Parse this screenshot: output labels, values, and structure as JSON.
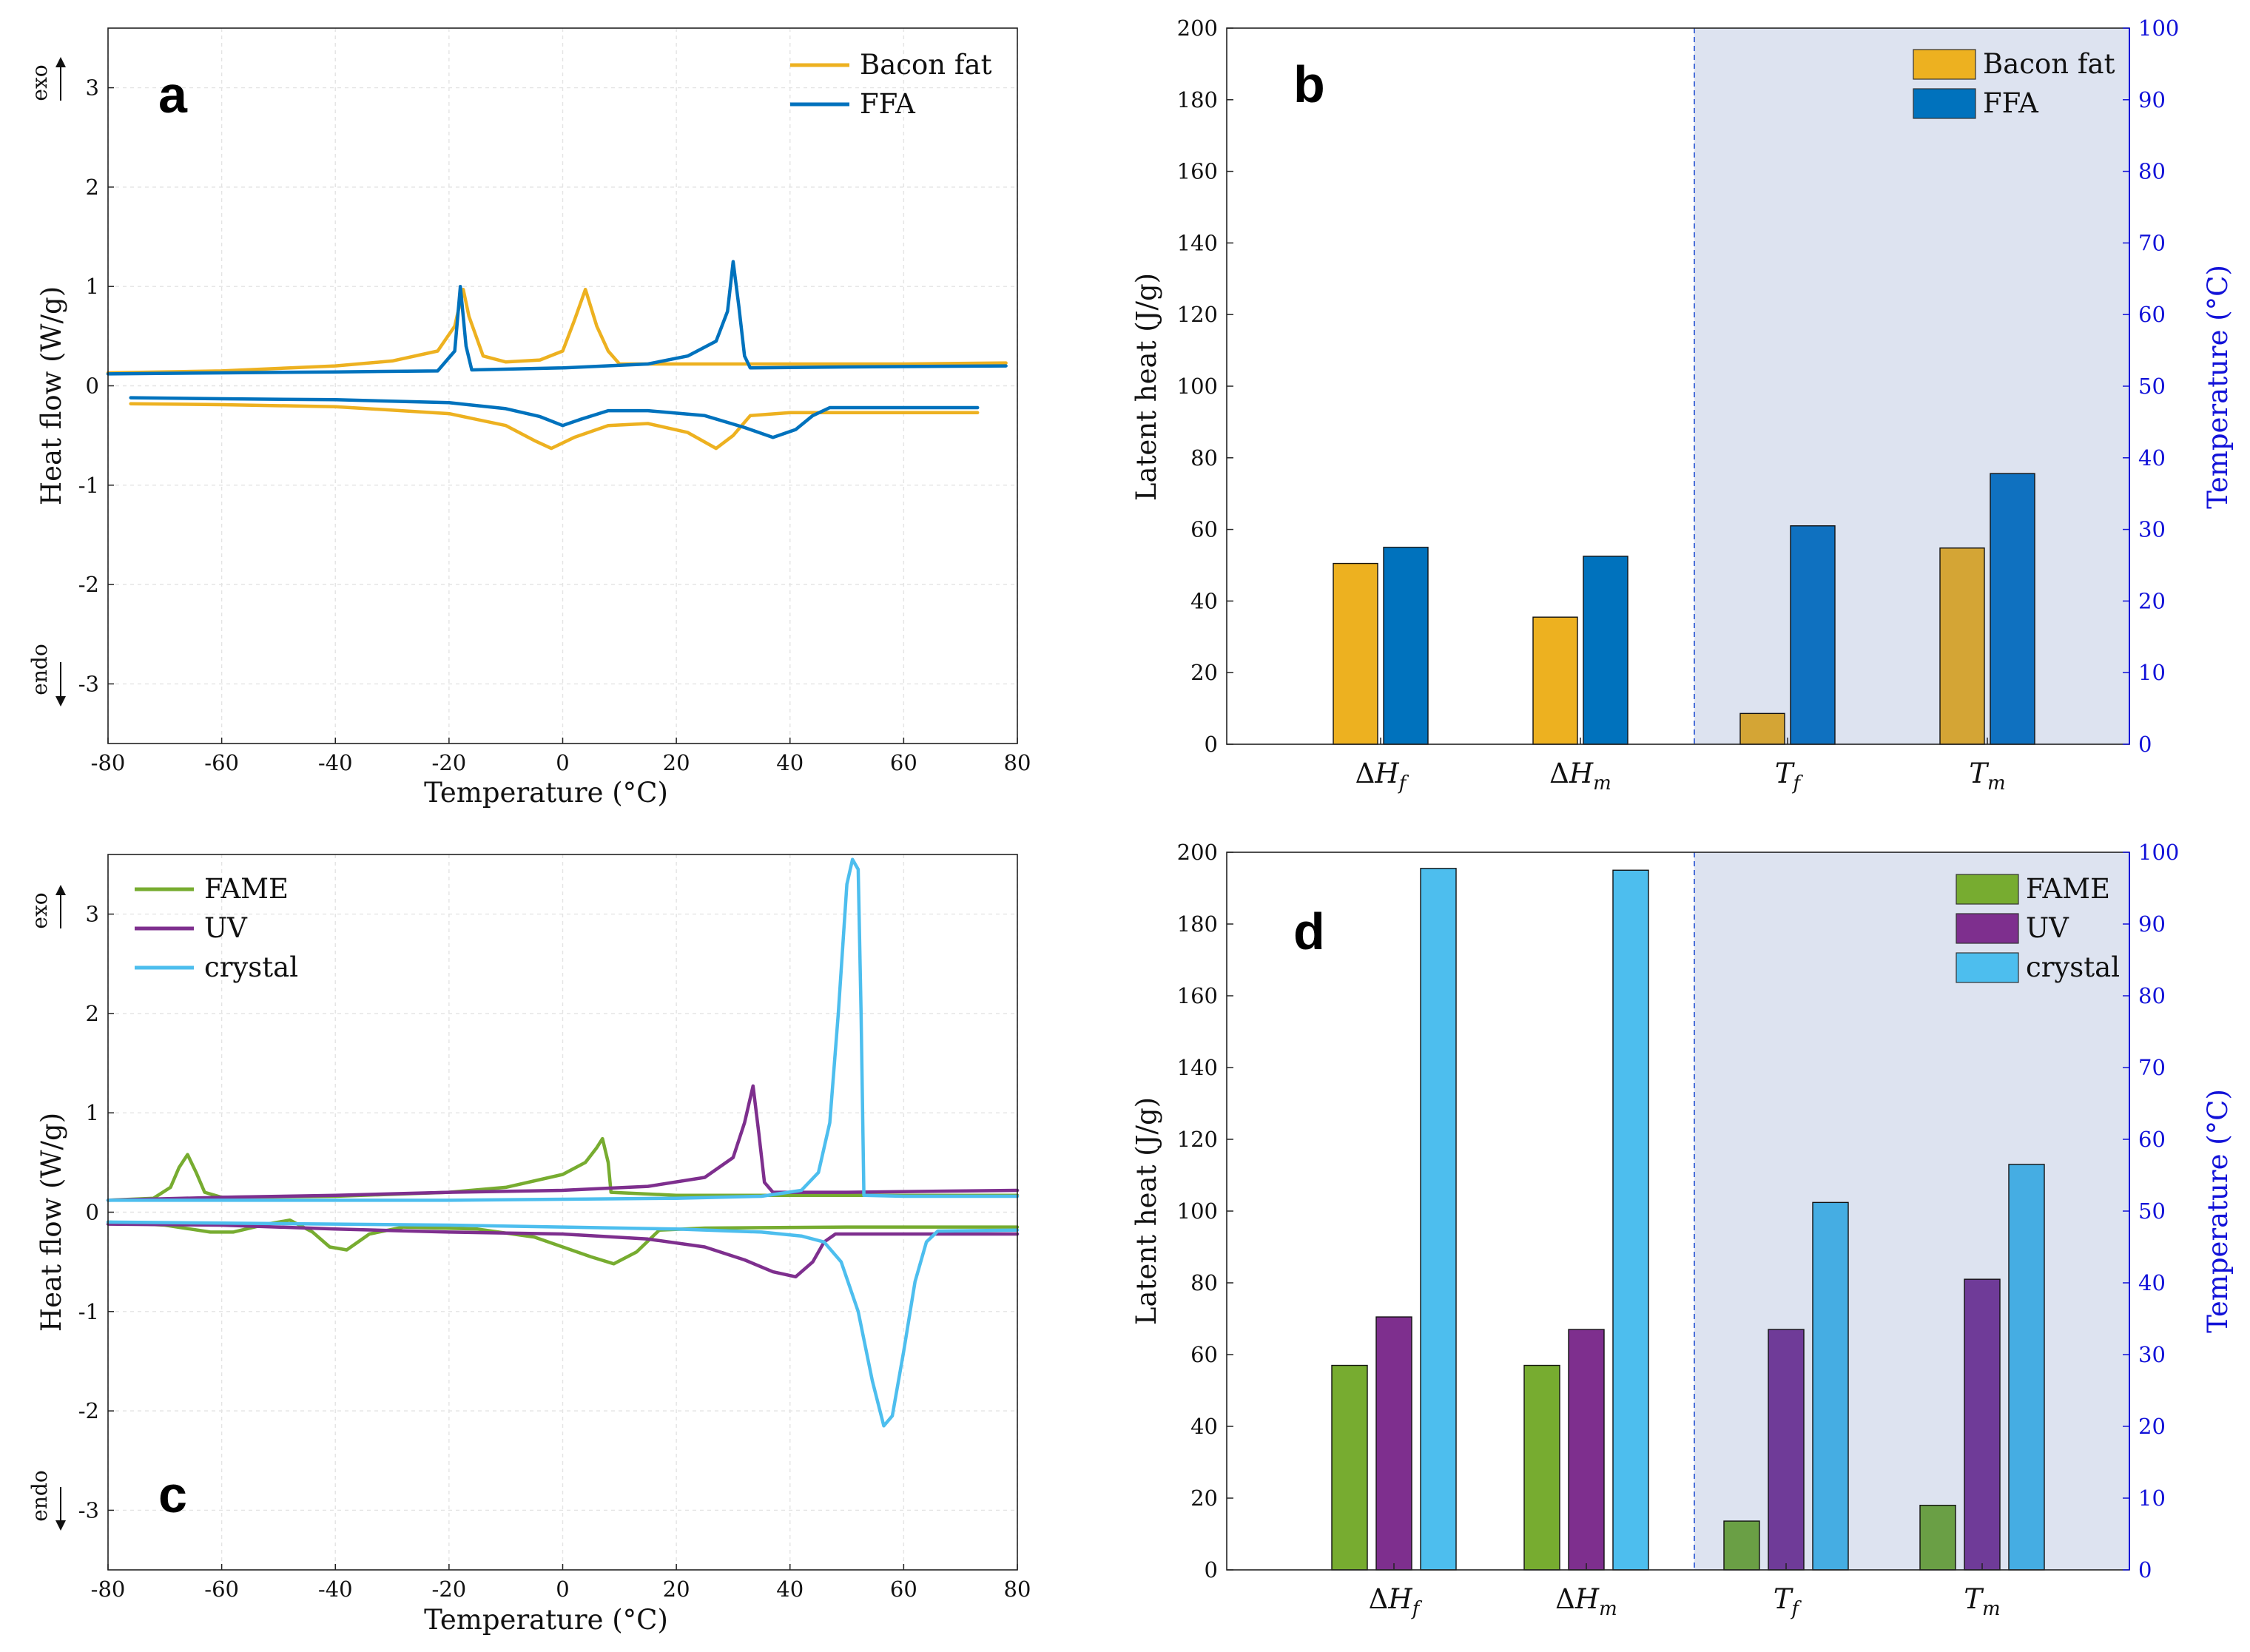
{
  "chart_data": [
    {
      "panel": "a",
      "type": "line",
      "xlabel": "Temperature (°C)",
      "ylabel": "Heat flow (W/g)",
      "xlim": [
        -80,
        80
      ],
      "ylim": [
        -3.6,
        3.6
      ],
      "xticks": [
        -80,
        -60,
        -40,
        -20,
        0,
        20,
        40,
        60,
        80
      ],
      "yticks": [
        -3,
        -2,
        -1,
        0,
        1,
        2,
        3
      ],
      "exo_label": "exo",
      "endo_label": "endo",
      "legend": [
        "Bacon fat",
        "FFA"
      ],
      "series": [
        {
          "name": "Bacon fat",
          "color": "#EDB120",
          "branch": "cooling",
          "points": [
            [
              -80,
              0.13
            ],
            [
              -60,
              0.15
            ],
            [
              -40,
              0.2
            ],
            [
              -30,
              0.25
            ],
            [
              -22,
              0.35
            ],
            [
              -19,
              0.6
            ],
            [
              -17.5,
              0.97
            ],
            [
              -16.5,
              0.7
            ],
            [
              -14,
              0.3
            ],
            [
              -10,
              0.24
            ],
            [
              -4,
              0.26
            ],
            [
              0,
              0.35
            ],
            [
              2,
              0.65
            ],
            [
              4,
              0.97
            ],
            [
              6,
              0.6
            ],
            [
              8,
              0.35
            ],
            [
              10,
              0.22
            ],
            [
              20,
              0.22
            ],
            [
              40,
              0.22
            ],
            [
              60,
              0.22
            ],
            [
              78,
              0.23
            ]
          ]
        },
        {
          "name": "Bacon fat",
          "color": "#EDB120",
          "branch": "heating",
          "points": [
            [
              -76,
              -0.18
            ],
            [
              -60,
              -0.19
            ],
            [
              -40,
              -0.21
            ],
            [
              -20,
              -0.28
            ],
            [
              -10,
              -0.4
            ],
            [
              -5,
              -0.55
            ],
            [
              -2,
              -0.63
            ],
            [
              2,
              -0.52
            ],
            [
              8,
              -0.4
            ],
            [
              15,
              -0.38
            ],
            [
              22,
              -0.47
            ],
            [
              27,
              -0.63
            ],
            [
              30,
              -0.5
            ],
            [
              33,
              -0.3
            ],
            [
              40,
              -0.27
            ],
            [
              60,
              -0.27
            ],
            [
              73,
              -0.27
            ]
          ]
        },
        {
          "name": "FFA",
          "color": "#0072BD",
          "branch": "cooling",
          "points": [
            [
              -80,
              0.12
            ],
            [
              -60,
              0.13
            ],
            [
              -40,
              0.14
            ],
            [
              -22,
              0.15
            ],
            [
              -19,
              0.35
            ],
            [
              -18,
              1.0
            ],
            [
              -17,
              0.4
            ],
            [
              -16,
              0.16
            ],
            [
              0,
              0.18
            ],
            [
              15,
              0.22
            ],
            [
              22,
              0.3
            ],
            [
              27,
              0.45
            ],
            [
              29,
              0.75
            ],
            [
              30,
              1.25
            ],
            [
              31,
              0.8
            ],
            [
              32,
              0.3
            ],
            [
              33,
              0.18
            ],
            [
              50,
              0.19
            ],
            [
              78,
              0.2
            ]
          ]
        },
        {
          "name": "FFA",
          "color": "#0072BD",
          "branch": "heating",
          "points": [
            [
              -76,
              -0.12
            ],
            [
              -60,
              -0.13
            ],
            [
              -40,
              -0.14
            ],
            [
              -20,
              -0.17
            ],
            [
              -10,
              -0.23
            ],
            [
              -4,
              -0.31
            ],
            [
              0,
              -0.4
            ],
            [
              3,
              -0.34
            ],
            [
              8,
              -0.25
            ],
            [
              15,
              -0.25
            ],
            [
              25,
              -0.3
            ],
            [
              32,
              -0.42
            ],
            [
              37,
              -0.52
            ],
            [
              41,
              -0.44
            ],
            [
              44,
              -0.3
            ],
            [
              47,
              -0.22
            ],
            [
              60,
              -0.22
            ],
            [
              73,
              -0.22
            ]
          ]
        }
      ]
    },
    {
      "panel": "b",
      "type": "bar",
      "categories": [
        "ΔH_f",
        "ΔH_m",
        "T_f",
        "T_m"
      ],
      "ylabel": "Latent heat (J/g)",
      "y2label": "Temperature (°C)",
      "ylim": [
        0,
        200
      ],
      "y2lim": [
        0,
        100
      ],
      "yticks": [
        0,
        20,
        40,
        60,
        80,
        100,
        120,
        140,
        160,
        180,
        200
      ],
      "y2ticks": [
        0,
        10,
        20,
        30,
        40,
        50,
        60,
        70,
        80,
        90,
        100
      ],
      "legend": [
        "Bacon fat",
        "FFA"
      ],
      "series": [
        {
          "name": "Bacon fat",
          "colors": [
            "#EDB120",
            "#EDB120",
            "#D4A535",
            "#D4A535"
          ],
          "values": [
            50.5,
            35.5,
            4.3,
            27.4
          ],
          "axis": [
            "left",
            "left",
            "right",
            "right"
          ]
        },
        {
          "name": "FFA",
          "colors": [
            "#0072BD",
            "#0072BD",
            "#0F71C0",
            "#0F71C0"
          ],
          "values": [
            55,
            52.5,
            30.5,
            37.8
          ],
          "axis": [
            "left",
            "left",
            "right",
            "right"
          ]
        }
      ]
    },
    {
      "panel": "c",
      "type": "line",
      "xlabel": "Temperature (°C)",
      "ylabel": "Heat flow (W/g)",
      "xlim": [
        -80,
        80
      ],
      "ylim": [
        -3.6,
        3.6
      ],
      "xticks": [
        -80,
        -60,
        -40,
        -20,
        0,
        20,
        40,
        60,
        80
      ],
      "yticks": [
        -3,
        -2,
        -1,
        0,
        1,
        2,
        3
      ],
      "exo_label": "exo",
      "endo_label": "endo",
      "legend": [
        "FAME",
        "UV",
        "crystal"
      ],
      "series": [
        {
          "name": "FAME",
          "color": "#77AC30",
          "branch": "cooling",
          "points": [
            [
              -80,
              0.12
            ],
            [
              -72,
              0.14
            ],
            [
              -69,
              0.25
            ],
            [
              -67.5,
              0.45
            ],
            [
              -66,
              0.58
            ],
            [
              -64.5,
              0.4
            ],
            [
              -63,
              0.2
            ],
            [
              -60,
              0.15
            ],
            [
              -40,
              0.16
            ],
            [
              -20,
              0.2
            ],
            [
              -10,
              0.25
            ],
            [
              0,
              0.38
            ],
            [
              4,
              0.5
            ],
            [
              6,
              0.65
            ],
            [
              7,
              0.74
            ],
            [
              8,
              0.5
            ],
            [
              8.5,
              0.2
            ],
            [
              20,
              0.17
            ],
            [
              50,
              0.17
            ],
            [
              80,
              0.17
            ]
          ]
        },
        {
          "name": "FAME",
          "color": "#77AC30",
          "branch": "heating",
          "points": [
            [
              -80,
              -0.1
            ],
            [
              -70,
              -0.13
            ],
            [
              -62,
              -0.2
            ],
            [
              -58,
              -0.2
            ],
            [
              -52,
              -0.12
            ],
            [
              -48,
              -0.08
            ],
            [
              -44,
              -0.2
            ],
            [
              -41,
              -0.35
            ],
            [
              -38,
              -0.38
            ],
            [
              -34,
              -0.22
            ],
            [
              -28,
              -0.15
            ],
            [
              -15,
              -0.17
            ],
            [
              -5,
              -0.25
            ],
            [
              0,
              -0.35
            ],
            [
              5,
              -0.45
            ],
            [
              9,
              -0.52
            ],
            [
              13,
              -0.4
            ],
            [
              17,
              -0.18
            ],
            [
              25,
              -0.16
            ],
            [
              50,
              -0.15
            ],
            [
              80,
              -0.15
            ]
          ]
        },
        {
          "name": "UV",
          "color": "#7E2F8E",
          "branch": "cooling",
          "points": [
            [
              -80,
              0.12
            ],
            [
              -60,
              0.15
            ],
            [
              -40,
              0.17
            ],
            [
              -20,
              0.2
            ],
            [
              0,
              0.22
            ],
            [
              15,
              0.26
            ],
            [
              25,
              0.35
            ],
            [
              30,
              0.55
            ],
            [
              32,
              0.9
            ],
            [
              33.5,
              1.27
            ],
            [
              34.5,
              0.8
            ],
            [
              35.5,
              0.3
            ],
            [
              37,
              0.2
            ],
            [
              50,
              0.2
            ],
            [
              80,
              0.22
            ]
          ]
        },
        {
          "name": "UV",
          "color": "#7E2F8E",
          "branch": "heating",
          "points": [
            [
              -80,
              -0.12
            ],
            [
              -60,
              -0.13
            ],
            [
              -40,
              -0.17
            ],
            [
              -20,
              -0.2
            ],
            [
              0,
              -0.22
            ],
            [
              15,
              -0.27
            ],
            [
              25,
              -0.35
            ],
            [
              32,
              -0.48
            ],
            [
              37,
              -0.6
            ],
            [
              41,
              -0.65
            ],
            [
              44,
              -0.5
            ],
            [
              46,
              -0.3
            ],
            [
              48,
              -0.22
            ],
            [
              60,
              -0.22
            ],
            [
              80,
              -0.22
            ]
          ]
        },
        {
          "name": "crystal",
          "color": "#4DBEEE",
          "branch": "cooling",
          "points": [
            [
              -80,
              0.12
            ],
            [
              -60,
              0.12
            ],
            [
              -40,
              0.12
            ],
            [
              -20,
              0.12
            ],
            [
              0,
              0.13
            ],
            [
              20,
              0.14
            ],
            [
              35,
              0.16
            ],
            [
              42,
              0.22
            ],
            [
              45,
              0.4
            ],
            [
              47,
              0.9
            ],
            [
              48.5,
              2.0
            ],
            [
              50,
              3.3
            ],
            [
              51,
              3.55
            ],
            [
              52,
              3.45
            ],
            [
              52.5,
              2.0
            ],
            [
              53,
              0.17
            ],
            [
              60,
              0.16
            ],
            [
              80,
              0.16
            ]
          ]
        },
        {
          "name": "crystal",
          "color": "#4DBEEE",
          "branch": "heating",
          "points": [
            [
              -80,
              -0.1
            ],
            [
              -60,
              -0.11
            ],
            [
              -40,
              -0.12
            ],
            [
              -20,
              -0.13
            ],
            [
              0,
              -0.15
            ],
            [
              20,
              -0.17
            ],
            [
              35,
              -0.2
            ],
            [
              42,
              -0.24
            ],
            [
              46,
              -0.3
            ],
            [
              49,
              -0.5
            ],
            [
              52,
              -1.0
            ],
            [
              54.5,
              -1.7
            ],
            [
              56.5,
              -2.15
            ],
            [
              58,
              -2.05
            ],
            [
              60,
              -1.4
            ],
            [
              62,
              -0.7
            ],
            [
              64,
              -0.3
            ],
            [
              66,
              -0.19
            ],
            [
              80,
              -0.18
            ]
          ]
        }
      ]
    },
    {
      "panel": "d",
      "type": "bar",
      "categories": [
        "ΔH_f",
        "ΔH_m",
        "T_f",
        "T_m"
      ],
      "ylabel": "Latent heat (J/g)",
      "y2label": "Temperature (°C)",
      "ylim": [
        0,
        200
      ],
      "y2lim": [
        0,
        100
      ],
      "yticks": [
        0,
        20,
        40,
        60,
        80,
        100,
        120,
        140,
        160,
        180,
        200
      ],
      "y2ticks": [
        0,
        10,
        20,
        30,
        40,
        50,
        60,
        70,
        80,
        90,
        100
      ],
      "legend": [
        "FAME",
        "UV",
        "crystal"
      ],
      "series": [
        {
          "name": "FAME",
          "colors": [
            "#77AC30",
            "#77AC30",
            "#6A9F45",
            "#6A9F45"
          ],
          "values": [
            57,
            57,
            6.8,
            9
          ],
          "axis": [
            "left",
            "left",
            "right",
            "right"
          ]
        },
        {
          "name": "UV",
          "colors": [
            "#7E2F8E",
            "#7E2F8E",
            "#6F3B98",
            "#6F3B98"
          ],
          "values": [
            70.5,
            67,
            33.5,
            40.5
          ],
          "axis": [
            "left",
            "left",
            "right",
            "right"
          ]
        },
        {
          "name": "crystal",
          "colors": [
            "#4DBEEE",
            "#4DBEEE",
            "#45ADE3",
            "#45ADE3"
          ],
          "values": [
            195.5,
            195,
            51.2,
            56.5
          ],
          "axis": [
            "left",
            "left",
            "right",
            "right"
          ]
        }
      ]
    }
  ],
  "panel_labels": [
    "a",
    "b",
    "c",
    "d"
  ],
  "colors": {
    "shade": "#DDE3F0",
    "divider": "#4A6FD8",
    "right_axis": "#1212D8"
  }
}
